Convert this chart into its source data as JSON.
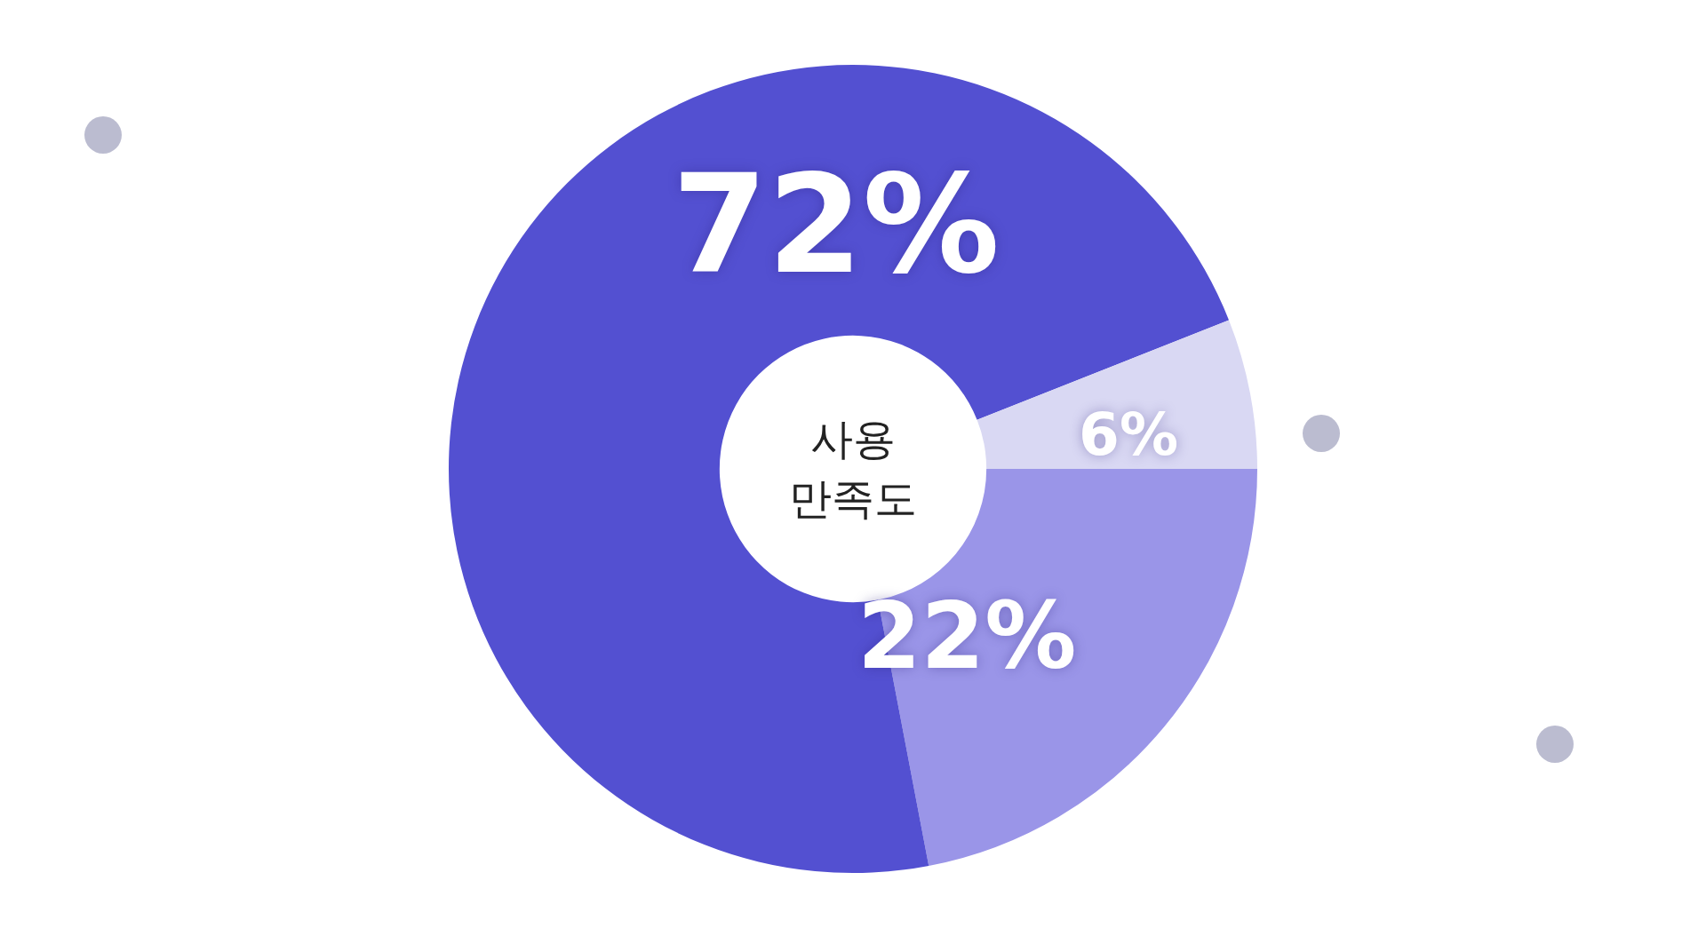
{
  "chart_data": {
    "type": "donut",
    "title": "사용 만족도",
    "categories": [
      null,
      null,
      null
    ],
    "values": [
      22,
      72,
      6
    ],
    "colors": [
      "#9a95e8",
      "#5350d1",
      "#d9d8f3"
    ],
    "value_labels": [
      "22%",
      "72%",
      "6%"
    ]
  }
}
